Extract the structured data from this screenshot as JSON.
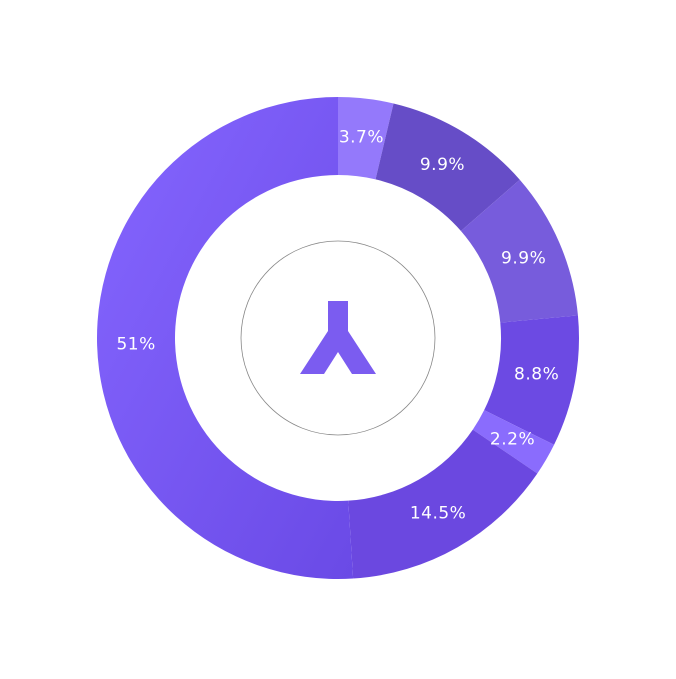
{
  "chart_data": {
    "type": "pie",
    "variant": "donut",
    "title": "",
    "legend": "none",
    "slices": [
      {
        "label": "3.7%",
        "value": 3.7,
        "color": "#9479fb"
      },
      {
        "label": "9.9%",
        "value": 9.9,
        "color": "#664dc7"
      },
      {
        "label": "9.9%",
        "value": 9.9,
        "color": "#775cdc"
      },
      {
        "label": "8.8%",
        "value": 8.8,
        "color": "#6c4ae3"
      },
      {
        "label": "2.2%",
        "value": 2.2,
        "color": "#8a6cfd"
      },
      {
        "label": "14.5%",
        "value": 14.5,
        "color": "#6b48e0"
      },
      {
        "label": "51%",
        "value": 51,
        "color": "#7a5df6"
      }
    ]
  },
  "center": {
    "icon": "branch-logo-icon",
    "icon_color": "#7b5cf0",
    "ring_color": "#888888"
  }
}
